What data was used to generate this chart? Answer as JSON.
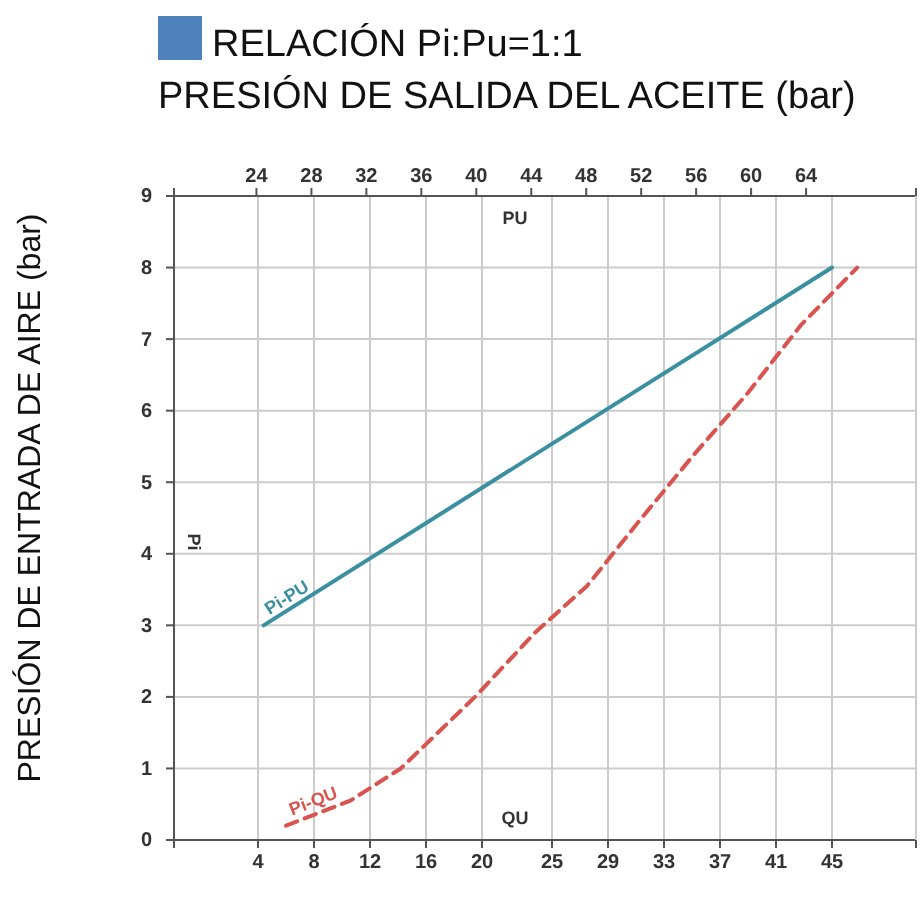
{
  "chart_data": {
    "type": "line",
    "title": "RELACIÓN Pi:Pu=1:1",
    "x2label": "PRESIÓN DE SALIDA DEL ACEITE (bar)",
    "ylabel": "PRESIÓN DE ENTRADA DE AIRE (bar)",
    "xlim": [
      -2,
      51
    ],
    "xticks": [
      4,
      8,
      12,
      16,
      20,
      25,
      29,
      33,
      37,
      41,
      45
    ],
    "x2lim": [
      18,
      72
    ],
    "x2ticks": [
      24,
      28,
      32,
      36,
      40,
      44,
      48,
      52,
      56,
      60,
      64
    ],
    "ylim": [
      0,
      9
    ],
    "yticks": [
      0,
      1,
      2,
      3,
      4,
      5,
      6,
      7,
      8,
      9
    ],
    "grid": true,
    "marker": "none",
    "series": [
      {
        "name": "Pi-PU",
        "color": "#3a8fa0",
        "line_style": "solid",
        "x": [
          4.4,
          45
        ],
        "values": [
          3,
          8
        ]
      },
      {
        "name": "Pi-QU",
        "color": "#d9534f",
        "line_style": "dashed",
        "x": [
          6,
          10.6,
          14.2,
          19.5,
          23.8,
          27.5,
          31.4,
          35.2,
          39,
          42.8,
          46.8
        ],
        "values": [
          0.2,
          0.55,
          1,
          2,
          2.9,
          3.55,
          4.5,
          5.4,
          6.25,
          7.2,
          8
        ]
      }
    ],
    "annotations": [
      "PU",
      "QU",
      "Pi"
    ]
  }
}
